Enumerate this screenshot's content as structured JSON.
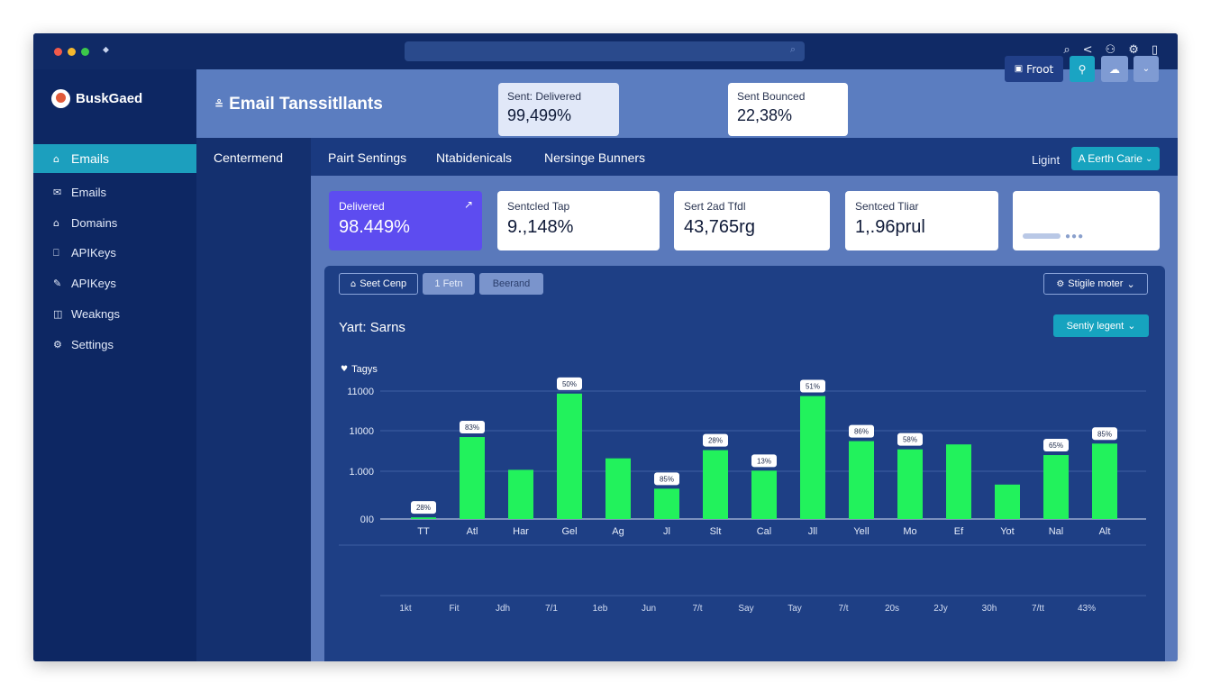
{
  "window": {
    "traffic_lights": [
      "#f25a4a",
      "#f5b82e",
      "#3cc94a"
    ],
    "toolbar_icons": [
      {
        "name": "search-icon",
        "glyph": "⌕"
      },
      {
        "name": "share-icon",
        "glyph": "<"
      },
      {
        "name": "user-icon",
        "glyph": "⚇"
      },
      {
        "name": "gear-icon",
        "glyph": "⚙"
      },
      {
        "name": "device-icon",
        "glyph": "▯"
      }
    ]
  },
  "sidebar": {
    "brand": "BuskGaed",
    "active_item": {
      "label": "Emails",
      "icon": "home-icon"
    },
    "items": [
      {
        "label": "Emails",
        "icon": "mail-icon"
      },
      {
        "label": "Domains",
        "icon": "globe-icon"
      },
      {
        "label": "APIKeys",
        "icon": "key-icon"
      },
      {
        "label": "APIKeys",
        "icon": "code-icon"
      },
      {
        "label": "Weakngs",
        "icon": "webhook-icon"
      },
      {
        "label": "Settings",
        "icon": "gear-icon"
      }
    ]
  },
  "header": {
    "title": "Email Tanssitllants",
    "cards": [
      {
        "label": "Sent: Delivered",
        "value": "99,499%"
      },
      {
        "label": "Sent Bounced",
        "value": "22,38%"
      }
    ],
    "front_button": "Froot"
  },
  "tabs": {
    "center": "Centermend",
    "items": [
      "Pairt Sentings",
      "Ntabidenicals",
      "Nersinge Bunners"
    ],
    "light_label": "Ligint",
    "earth_button": "A Eerth Carie"
  },
  "metrics": [
    {
      "label": "Delivered",
      "value": "98.449%"
    },
    {
      "label": "Sentcled Tap",
      "value": "9.,148%"
    },
    {
      "label": "Sert 2ad Tfdl",
      "value": "43,765rg"
    },
    {
      "label": "Sentced Tliar",
      "value": "1,.96prul"
    }
  ],
  "chart_panel": {
    "filter_buttons": [
      "Seet Cenp",
      "1 Fetn",
      "Beerand"
    ],
    "dropdown": "Stigile moter",
    "title": "Yart: Sarns",
    "action_button": "Sentiy legent",
    "legend": "Tagys"
  },
  "chart_data": {
    "type": "bar",
    "color": "#22f25c",
    "y_tick_labels": [
      "0I0",
      "1.000",
      "1I000",
      "11000"
    ],
    "ylim": [
      0,
      1550
    ],
    "categories": [
      "TT",
      "Atl",
      "Har",
      "Gel",
      "Ag",
      "Jl",
      "Slt",
      "Cal",
      "Jll",
      "Yell",
      "Mo",
      "Ef",
      "Yot",
      "Nal",
      "Alt"
    ],
    "values": [
      20,
      1000,
      600,
      1530,
      740,
      370,
      840,
      590,
      1500,
      950,
      850,
      910,
      420,
      780,
      920
    ],
    "data_labels": [
      "28%",
      "83%",
      "",
      "50%",
      "",
      "85%",
      "28%",
      "13%",
      "51%",
      "86%",
      "58%",
      "",
      "",
      "65%",
      "85%"
    ],
    "second_axis": [
      "1kt",
      "Fit",
      "Jdh",
      "7/1",
      "1eb",
      "Jun",
      "7/t",
      "Say",
      "Tay",
      "7/t",
      "20s",
      "2Jy",
      "30h",
      "7/tt",
      "43%"
    ]
  }
}
